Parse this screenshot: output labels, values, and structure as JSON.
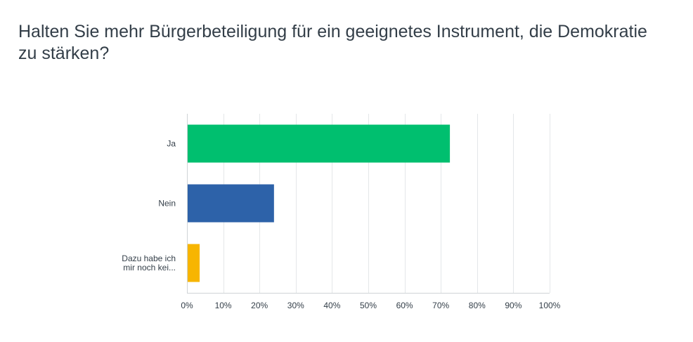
{
  "chart_data": {
    "type": "bar",
    "orientation": "horizontal",
    "title": "Halten Sie mehr Bürgerbeteiligung für ein geeignetes Instrument, die Demokratie zu stärken?",
    "categories": [
      {
        "lines": [
          "Ja"
        ]
      },
      {
        "lines": [
          "Nein"
        ]
      },
      {
        "lines": [
          "Dazu habe ich",
          "mir noch kei..."
        ]
      }
    ],
    "values": [
      72.5,
      24,
      3.5
    ],
    "colors": [
      "#00bf6f",
      "#2d62a9",
      "#f7b500"
    ],
    "xlim": [
      0,
      100
    ],
    "xticks": [
      "0%",
      "10%",
      "20%",
      "30%",
      "40%",
      "50%",
      "60%",
      "70%",
      "80%",
      "90%",
      "100%"
    ],
    "grid": true,
    "legend": "none"
  }
}
